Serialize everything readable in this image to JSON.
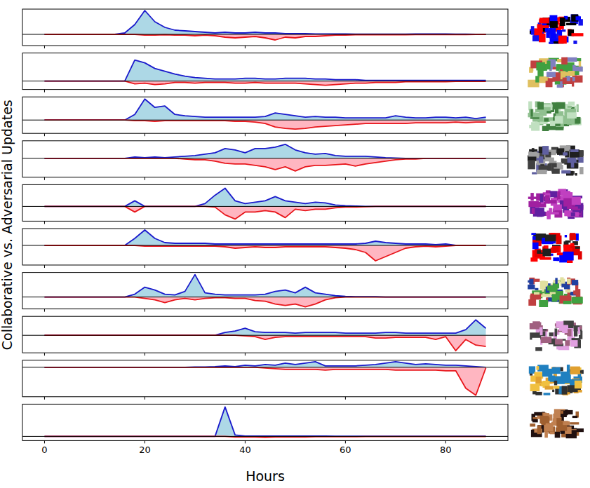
{
  "chart_data": {
    "type": "area",
    "x_label": "Hours",
    "y_label": "Collaborative vs. Adversarial Updates",
    "x": [
      0,
      2,
      4,
      6,
      8,
      10,
      12,
      14,
      16,
      18,
      20,
      22,
      24,
      26,
      28,
      30,
      32,
      34,
      36,
      38,
      40,
      42,
      44,
      46,
      48,
      50,
      52,
      54,
      56,
      58,
      60,
      62,
      64,
      66,
      68,
      70,
      72,
      74,
      76,
      78,
      80,
      82,
      84,
      86,
      88
    ],
    "xlim": [
      -4.4,
      92.4
    ],
    "xticks": [
      0,
      20,
      40,
      60,
      80
    ],
    "panels": [
      {
        "ylim": [
          -16,
          36
        ],
        "tick_labels": false,
        "series": [
          {
            "color": "#1a1acc",
            "values": [
              0,
              0,
              0,
              0,
              0,
              0,
              0,
              0,
              2,
              14,
              34,
              18,
              10,
              6,
              5,
              4,
              3,
              2,
              3,
              2,
              2,
              3,
              2,
              2,
              1,
              1,
              1,
              0.5,
              0.5,
              0.5,
              0.5,
              0.3,
              0.3,
              0.3,
              0.3,
              0.3,
              0.3,
              0.5,
              0.5,
              0.5,
              0.5,
              0.3,
              0.3,
              0.2,
              0
            ]
          },
          {
            "color": "#e8161b",
            "values": [
              0,
              0,
              0,
              0,
              0,
              0,
              0,
              0,
              0,
              0,
              -1,
              -1,
              -0.5,
              -1,
              -1,
              -2,
              -1,
              -2,
              -4,
              -5,
              -4,
              -3,
              -5,
              -8,
              -4,
              -5,
              -3,
              -3,
              -2,
              -1,
              -1,
              -0.5,
              -0.5,
              -0.5,
              -0.5,
              -0.5,
              -0.5,
              -0.3,
              -0.3,
              -0.3,
              -0.3,
              -0.3,
              -0.3,
              -0.2,
              0
            ]
          }
        ]
      },
      {
        "ylim": [
          -12,
          40
        ],
        "tick_labels": false,
        "series": [
          {
            "color": "#1a1acc",
            "values": [
              0,
              0,
              0,
              0,
              0,
              0,
              0,
              0,
              0,
              30,
              26,
              18,
              14,
              10,
              7,
              5,
              4,
              3,
              3,
              3,
              4,
              4,
              3,
              3,
              4,
              4,
              4,
              3,
              3,
              2,
              2,
              2,
              1,
              1,
              1,
              1,
              1,
              1,
              1,
              1,
              1,
              1,
              1,
              1,
              1
            ]
          },
          {
            "color": "#e8161b",
            "values": [
              0,
              0,
              0,
              0,
              0,
              0,
              0,
              0,
              0,
              -4,
              -3,
              -5,
              -4,
              -2,
              -2,
              -3,
              -2,
              -2,
              -2,
              -3,
              -3,
              -2,
              -3,
              -3,
              -3,
              -3,
              -4,
              -5,
              -6,
              -5,
              -4,
              -3,
              -3,
              -2,
              -2,
              -2,
              -1,
              -1,
              -1,
              -1,
              -1,
              -0.5,
              -0.5,
              -0.5,
              -0.5
            ]
          }
        ]
      },
      {
        "ylim": [
          -19,
          33
        ],
        "tick_labels": false,
        "series": [
          {
            "color": "#1a1acc",
            "values": [
              0,
              0,
              0,
              0,
              0,
              0,
              0,
              0,
              0,
              8,
              30,
              18,
              20,
              8,
              6,
              5,
              4,
              4,
              4,
              4,
              4,
              4,
              5,
              10,
              8,
              6,
              4,
              5,
              4,
              4,
              3,
              3,
              3,
              3,
              3,
              6,
              4,
              3,
              3,
              4,
              4,
              3,
              4,
              2,
              4
            ]
          },
          {
            "color": "#e8161b",
            "values": [
              0,
              0,
              0,
              0,
              0,
              0,
              0,
              0,
              0,
              -1,
              -1,
              -2,
              -1,
              -1,
              -1,
              -1,
              -1,
              -1,
              -1,
              -2,
              -2,
              -3,
              -5,
              -10,
              -12,
              -13,
              -12,
              -10,
              -9,
              -8,
              -7,
              -6,
              -5,
              -5,
              -5,
              -5,
              -5,
              -4,
              -4,
              -4,
              -4,
              -3,
              -4,
              -3,
              -3
            ]
          }
        ]
      },
      {
        "ylim": [
          -27,
          25
        ],
        "tick_labels": false,
        "series": [
          {
            "color": "#1a1acc",
            "values": [
              0,
              0,
              0,
              0,
              0,
              0,
              0,
              0,
              0,
              2,
              1,
              2,
              1,
              2,
              3,
              4,
              6,
              8,
              14,
              12,
              8,
              14,
              14,
              16,
              20,
              12,
              8,
              6,
              7,
              4,
              3,
              3,
              3,
              2,
              1,
              0.5,
              0,
              0,
              0,
              0,
              0,
              0,
              0,
              0,
              0
            ]
          },
          {
            "color": "#e8161b",
            "values": [
              0,
              0,
              0,
              0,
              0,
              0,
              0,
              0,
              0,
              0,
              0,
              0,
              0,
              0,
              -1,
              -2,
              -2,
              -4,
              -7,
              -8,
              -8,
              -10,
              -12,
              -16,
              -12,
              -18,
              -12,
              -10,
              -10,
              -9,
              -8,
              -11,
              -8,
              -6,
              -4,
              -2,
              -1,
              -1,
              0,
              0,
              0,
              0,
              0,
              0,
              0
            ]
          }
        ]
      },
      {
        "ylim": [
          -21,
          31
        ],
        "tick_labels": false,
        "series": [
          {
            "color": "#1a1acc",
            "values": [
              0,
              0,
              0,
              0,
              0,
              0,
              0,
              0,
              0,
              8,
              0,
              0,
              0,
              0,
              0,
              0,
              4,
              16,
              26,
              8,
              4,
              6,
              8,
              14,
              8,
              6,
              4,
              6,
              5,
              2,
              1,
              0.5,
              0,
              0,
              0,
              0,
              0,
              0,
              0,
              0,
              0,
              0,
              0,
              0,
              0
            ]
          },
          {
            "color": "#e8161b",
            "values": [
              0,
              0,
              0,
              0,
              0,
              0,
              0,
              0,
              0,
              -8,
              0,
              0,
              0,
              0,
              0,
              0,
              0,
              -1,
              -12,
              -18,
              -8,
              -8,
              -6,
              -8,
              -16,
              -4,
              -6,
              -4,
              -4,
              -2,
              -1,
              -1,
              -0.5,
              0,
              0,
              0,
              0,
              0,
              0,
              0,
              0,
              0,
              0,
              0,
              0
            ]
          }
        ]
      },
      {
        "ylim": [
          -28,
          24
        ],
        "tick_labels": false,
        "series": [
          {
            "color": "#1a1acc",
            "values": [
              0,
              0,
              0,
              0,
              0,
              0,
              0,
              0,
              0,
              10,
              22,
              10,
              4,
              3,
              3,
              3,
              3,
              2,
              2,
              2,
              2,
              2,
              2,
              2,
              2,
              2,
              2,
              2,
              2,
              2,
              2,
              2,
              3,
              6,
              4,
              3,
              2,
              2,
              2,
              1,
              2,
              0,
              0,
              0,
              0
            ]
          },
          {
            "color": "#e8161b",
            "values": [
              0,
              0,
              0,
              0,
              0,
              0,
              0,
              0,
              0,
              0,
              -1,
              -1,
              -1,
              -1,
              -1,
              -1,
              -1,
              -1,
              -2,
              -4,
              -3,
              -2,
              -3,
              -3,
              -2,
              -2,
              -2,
              -2,
              -2,
              -3,
              -4,
              -6,
              -10,
              -22,
              -16,
              -10,
              -4,
              -2,
              -1,
              -2,
              -1,
              0,
              0,
              0,
              0
            ]
          }
        ]
      },
      {
        "ylim": [
          -17,
          35
        ],
        "tick_labels": false,
        "series": [
          {
            "color": "#1a1acc",
            "values": [
              0,
              0,
              0,
              0,
              0,
              0,
              0,
              0,
              0,
              4,
              14,
              10,
              4,
              3,
              8,
              32,
              6,
              4,
              3,
              3,
              3,
              3,
              4,
              8,
              10,
              6,
              14,
              6,
              4,
              2,
              1,
              0.5,
              0.5,
              0.5,
              0,
              0,
              0,
              0,
              0,
              0,
              0,
              0,
              0,
              0,
              0
            ]
          },
          {
            "color": "#e8161b",
            "values": [
              0,
              0,
              0,
              0,
              0,
              0,
              0,
              0,
              0,
              0,
              -2,
              -4,
              -8,
              -4,
              -2,
              -4,
              -2,
              -1,
              -1,
              -2,
              -2,
              -5,
              -6,
              -10,
              -12,
              -10,
              -14,
              -10,
              -4,
              -1,
              0,
              0,
              0,
              0,
              0,
              0,
              0,
              0,
              0,
              0,
              0,
              0,
              0,
              0,
              0
            ]
          }
        ]
      },
      {
        "ylim": [
          -25,
          27
        ],
        "tick_labels": false,
        "series": [
          {
            "color": "#1a1acc",
            "values": [
              0,
              0,
              0,
              0,
              0,
              0,
              0,
              0,
              0,
              0,
              0,
              0,
              0,
              0,
              0,
              0,
              0,
              0,
              4,
              6,
              10,
              5,
              4,
              4,
              4,
              3,
              4,
              4,
              4,
              4,
              3,
              3,
              3,
              3,
              4,
              4,
              3,
              3,
              3,
              3,
              3,
              3,
              8,
              22,
              10
            ]
          },
          {
            "color": "#e8161b",
            "values": [
              0,
              0,
              0,
              0,
              0,
              0,
              0,
              0,
              0,
              0,
              0,
              0,
              0,
              0,
              0,
              0,
              0,
              0,
              0,
              0,
              -1,
              -2,
              -6,
              -3,
              -2,
              -2,
              -2,
              -2,
              -2,
              -2,
              -2,
              -2,
              -2,
              -4,
              -4,
              -3,
              -3,
              -3,
              -3,
              -6,
              -2,
              -22,
              -6,
              -14,
              -16
            ]
          }
        ]
      },
      {
        "ylim": [
          -42,
          10
        ],
        "tick_labels": false,
        "series": [
          {
            "color": "#1a1acc",
            "values": [
              0,
              0,
              0,
              0,
              0,
              0,
              0,
              0,
              0,
              0,
              0,
              0,
              0,
              0,
              0,
              0.5,
              0.5,
              1,
              2,
              1,
              3,
              2,
              4,
              3,
              6,
              4,
              6,
              8,
              2,
              2,
              2,
              2,
              3,
              4,
              6,
              8,
              6,
              4,
              5,
              4,
              3,
              3,
              2,
              1,
              0
            ]
          },
          {
            "color": "#e8161b",
            "values": [
              0,
              0,
              0,
              0,
              0,
              0,
              0,
              0,
              0,
              0,
              0,
              0,
              0,
              0,
              0,
              0,
              0,
              0,
              0,
              0,
              0,
              0,
              -1,
              -2,
              -3,
              -3,
              -3,
              -3,
              -4,
              -3,
              -3,
              -3,
              -3,
              -3,
              -3,
              -4,
              -4,
              -4,
              -4,
              -4,
              -5,
              -5,
              -30,
              -40,
              -1
            ]
          }
        ]
      },
      {
        "ylim": [
          -6,
          46
        ],
        "tick_labels": "x",
        "series": [
          {
            "color": "#1a1acc",
            "values": [
              0,
              0,
              0,
              0,
              0,
              0,
              0,
              0,
              0,
              0,
              0,
              0,
              0,
              0,
              0,
              0,
              0,
              0,
              42,
              2,
              0.5,
              0.5,
              0.5,
              0.5,
              0.5,
              0.5,
              0.5,
              0.5,
              0.5,
              0.3,
              0.3,
              0.3,
              0.3,
              0.3,
              0.3,
              0.3,
              0.3,
              0.3,
              0.3,
              0.3,
              0.3,
              0.3,
              0.3,
              0.3,
              0.3
            ]
          },
          {
            "color": "#e8161b",
            "values": [
              0,
              0,
              0,
              0,
              0,
              0,
              0,
              0,
              0,
              0,
              0,
              0,
              0,
              0,
              0,
              0,
              0,
              0,
              0,
              -1,
              -1,
              -1,
              -1.5,
              -1,
              -1,
              -1,
              -1,
              -0.5,
              -0.5,
              -0.5,
              -0.5,
              -0.5,
              -0.3,
              -0.3,
              -0.3,
              -0.3,
              -0.3,
              -0.3,
              -0.3,
              -0.3,
              -0.3,
              -0.3,
              -0.3,
              -0.3,
              -0.3
            ]
          }
        ]
      }
    ]
  }
}
